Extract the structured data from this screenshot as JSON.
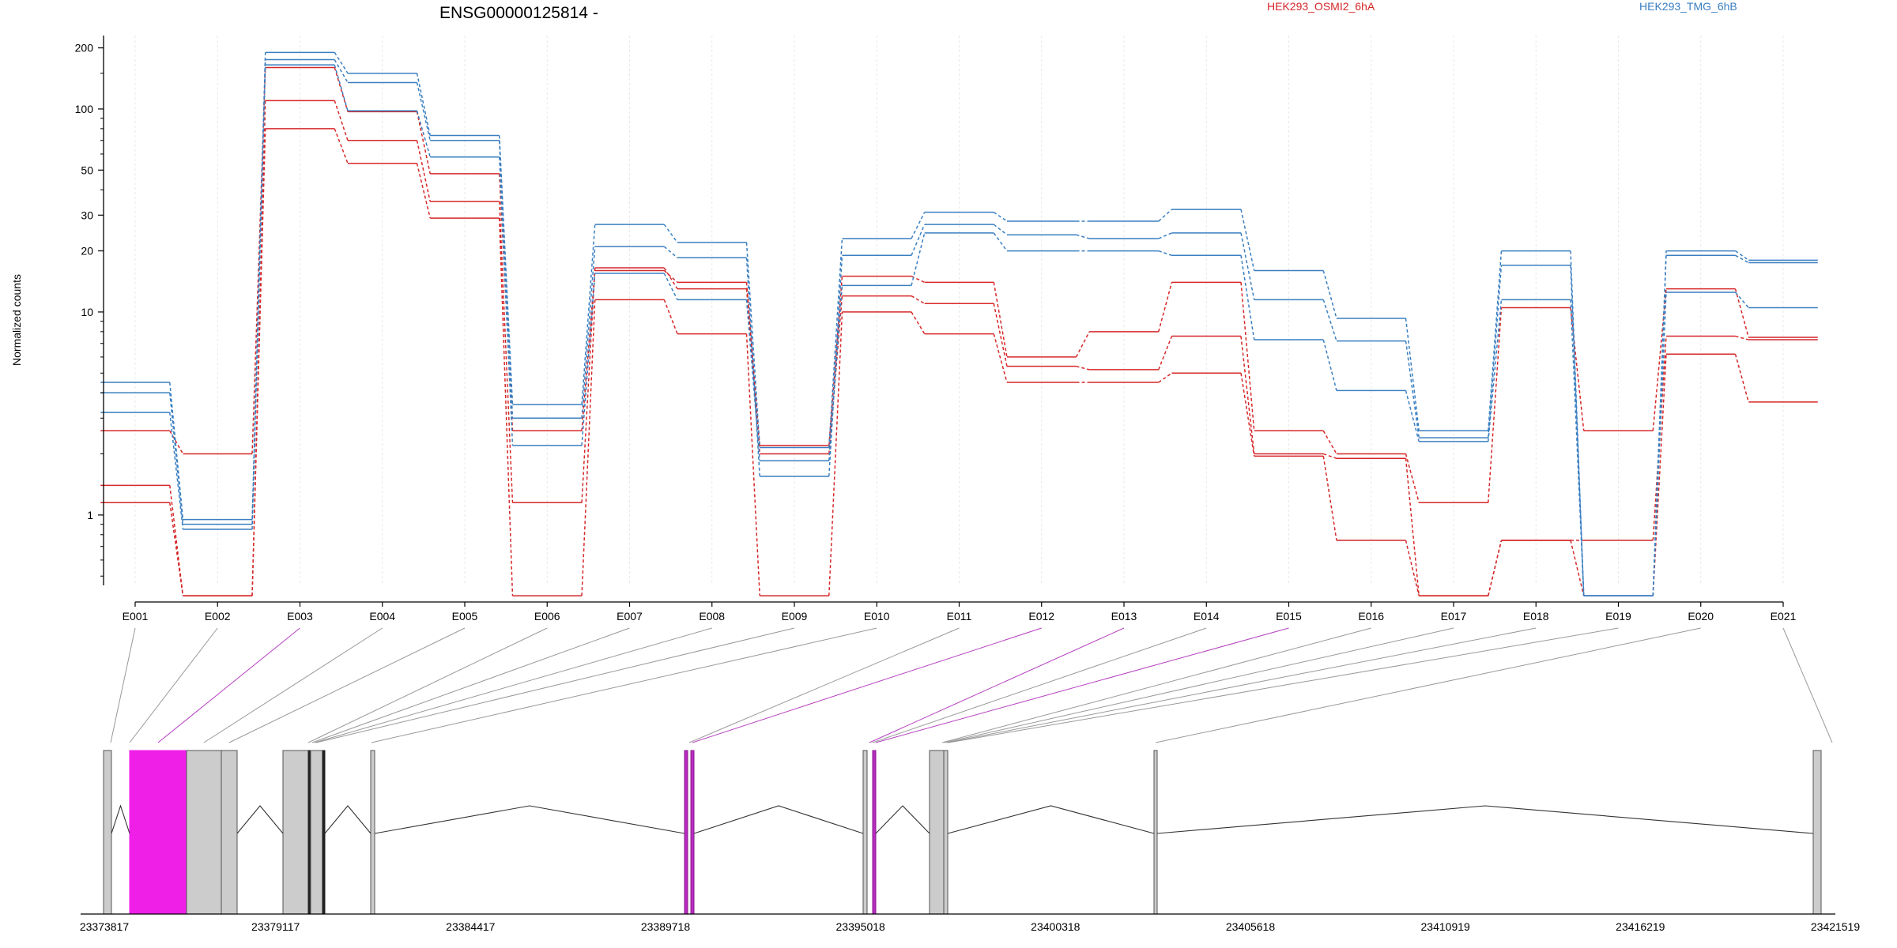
{
  "title": "ENSG00000125814 -",
  "ylabel": "Normalized counts",
  "legend": [
    {
      "label": "HEK293_OSMI2_6hA",
      "color": "#d62728"
    },
    {
      "label": "HEK293_TMG_6hB",
      "color": "#3a7fc1"
    }
  ],
  "colors": {
    "osmi": "#d62728",
    "tmg": "#3a7fc1",
    "highlight": "#f01fe8",
    "exon": "#cccccc",
    "link_gray": "#999999",
    "link_magenta": "#b53fbf"
  },
  "chart_data": {
    "type": "line",
    "scale": "log",
    "ylim": [
      0.45,
      230
    ],
    "yticks": [
      1,
      10,
      20,
      30,
      50,
      100,
      200
    ],
    "ytick_labels": [
      "1",
      "10",
      "20",
      "30",
      "50",
      "100",
      "200"
    ],
    "categories": [
      "E001",
      "E002",
      "E003",
      "E004",
      "E005",
      "E006",
      "E007",
      "E008",
      "E009",
      "E010",
      "E011",
      "E012",
      "E013",
      "E014",
      "E015",
      "E016",
      "E017",
      "E018",
      "E019",
      "E020",
      "E021"
    ],
    "series": [
      {
        "name": "HEK293_OSMI2_6hA",
        "group": "osmi",
        "values": [
          2.6,
          2.0,
          160,
          97,
          48,
          2.6,
          16,
          14,
          2.2,
          15,
          14,
          6.0,
          8.0,
          14,
          2.6,
          2.0,
          1.15,
          10.5,
          2.6,
          13,
          7.5
        ]
      },
      {
        "name": "HEK293_OSMI2_6hA",
        "group": "osmi",
        "values": [
          1.4,
          0.4,
          110,
          70,
          35,
          1.15,
          16.5,
          13,
          2.0,
          12,
          11,
          5.4,
          5.2,
          7.6,
          2.0,
          1.9,
          0.4,
          0.75,
          0.75,
          7.6,
          7.3
        ]
      },
      {
        "name": "HEK293_OSMI2_6hA",
        "group": "osmi",
        "values": [
          1.15,
          0.4,
          80,
          54,
          29,
          0.4,
          11.5,
          7.8,
          0.4,
          10,
          7.8,
          4.5,
          4.5,
          5.0,
          1.95,
          0.75,
          0.4,
          0.75,
          0.4,
          6.2,
          3.6
        ]
      },
      {
        "name": "HEK293_TMG_6hB",
        "group": "tmg",
        "values": [
          4.5,
          0.95,
          190,
          150,
          74,
          3.5,
          27,
          22,
          2.15,
          23,
          31,
          28,
          28,
          32,
          16,
          9.3,
          2.6,
          20,
          0.4,
          20,
          18
        ]
      },
      {
        "name": "HEK293_TMG_6hB",
        "group": "tmg",
        "values": [
          4.0,
          0.9,
          175,
          135,
          70,
          3.0,
          21,
          18.5,
          1.55,
          19,
          27,
          24,
          23,
          24.5,
          11.5,
          7.2,
          2.4,
          17,
          0.4,
          19,
          17.5
        ]
      },
      {
        "name": "HEK293_TMG_6hB",
        "group": "tmg",
        "values": [
          3.2,
          0.85,
          165,
          98,
          58,
          2.2,
          15.5,
          11.5,
          1.85,
          13.5,
          24.5,
          20,
          20,
          19,
          7.3,
          4.1,
          2.3,
          11.5,
          0.4,
          12.5,
          10.5
        ]
      }
    ]
  },
  "gene_model": {
    "coord_ticks": [
      "23373817",
      "23379117",
      "23384417",
      "23389718",
      "23395018",
      "23400318",
      "23405618",
      "23410919",
      "23416219",
      "23421519"
    ],
    "exons_highlighted": [
      "E003",
      "E012",
      "E013",
      "E015"
    ]
  }
}
